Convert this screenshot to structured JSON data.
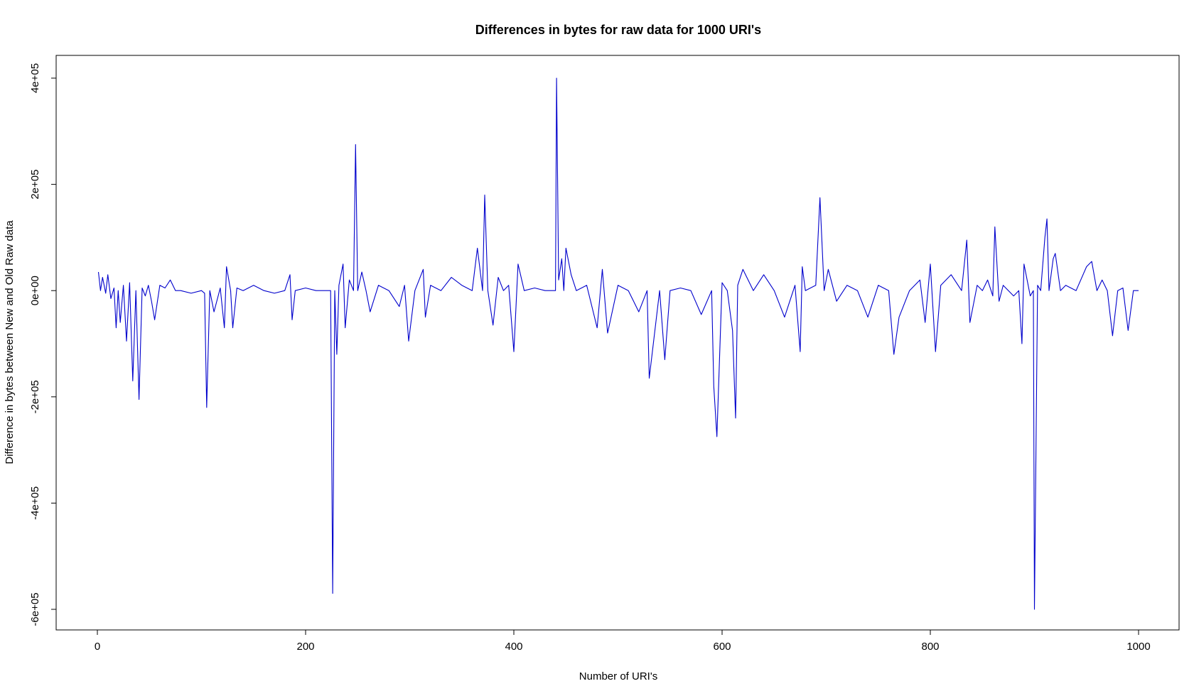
{
  "chart_data": {
    "type": "line",
    "title": "Differences in bytes for raw data for 1000 URI's",
    "xlabel": "Number of URI's",
    "ylabel": "Difference in bytes between New and Old Raw data",
    "xlim": [
      0,
      1000
    ],
    "ylim": [
      -600000,
      400000
    ],
    "xticks": [
      0,
      200,
      400,
      600,
      800,
      1000
    ],
    "xtick_labels": [
      "0",
      "200",
      "400",
      "600",
      "800",
      "1000"
    ],
    "yticks": [
      -600000,
      -400000,
      -200000,
      0,
      200000,
      400000
    ],
    "ytick_labels": [
      "-6e+05",
      "-4e+05",
      "-2e+05",
      "0e+00",
      "2e+05",
      "4e+05"
    ],
    "grid": false,
    "line_color": "#0000cc",
    "series": [
      {
        "x": [
          1,
          3,
          5,
          8,
          10,
          13,
          16,
          18,
          20,
          22,
          25,
          28,
          31,
          34,
          37,
          40,
          43,
          46,
          49,
          52,
          55,
          60,
          65,
          70,
          75,
          80,
          90,
          100,
          103,
          105,
          108,
          112,
          118,
          122,
          124,
          128,
          130,
          134,
          140,
          150,
          160,
          170,
          180,
          185,
          187,
          190,
          200,
          210,
          220,
          224,
          226,
          228,
          230,
          232,
          236,
          238,
          242,
          246,
          248,
          250,
          254,
          258,
          262,
          270,
          280,
          290,
          295,
          299,
          305,
          313,
          315,
          320,
          330,
          340,
          350,
          360,
          365,
          370,
          372,
          375,
          380,
          385,
          390,
          395,
          400,
          404,
          410,
          420,
          430,
          440,
          441,
          443,
          446,
          448,
          450,
          455,
          460,
          470,
          480,
          485,
          490,
          500,
          510,
          520,
          528,
          530,
          540,
          545,
          550,
          560,
          570,
          580,
          590,
          592,
          595,
          600,
          605,
          610,
          613,
          615,
          620,
          630,
          640,
          650,
          660,
          670,
          675,
          677,
          680,
          690,
          694,
          698,
          702,
          710,
          720,
          730,
          740,
          750,
          760,
          765,
          770,
          780,
          790,
          795,
          800,
          805,
          810,
          820,
          830,
          835,
          838,
          845,
          850,
          855,
          860,
          862,
          866,
          870,
          880,
          885,
          888,
          890,
          896,
          899,
          900,
          903,
          906,
          910,
          912,
          914,
          918,
          920,
          925,
          930,
          940,
          950,
          955,
          960,
          965,
          970,
          975,
          980,
          985,
          990,
          995,
          1000
        ],
        "values": [
          35000,
          0,
          25000,
          -5000,
          30000,
          -15000,
          5000,
          -70000,
          0,
          -60000,
          10000,
          -95000,
          15000,
          -170000,
          0,
          -205000,
          5000,
          -10000,
          10000,
          -20000,
          -55000,
          10000,
          5000,
          20000,
          0,
          0,
          -5000,
          0,
          -5000,
          -220000,
          0,
          -40000,
          5000,
          -70000,
          45000,
          0,
          -70000,
          5000,
          0,
          10000,
          0,
          -5000,
          0,
          30000,
          -55000,
          0,
          5000,
          0,
          0,
          0,
          -570000,
          0,
          -120000,
          10000,
          50000,
          -70000,
          20000,
          0,
          275000,
          0,
          35000,
          0,
          -40000,
          10000,
          0,
          -30000,
          10000,
          -95000,
          0,
          40000,
          -50000,
          10000,
          0,
          25000,
          10000,
          0,
          80000,
          0,
          180000,
          0,
          -65000,
          25000,
          0,
          10000,
          -115000,
          50000,
          0,
          5000,
          0,
          0,
          400000,
          20000,
          60000,
          0,
          80000,
          30000,
          0,
          10000,
          -70000,
          40000,
          -80000,
          10000,
          0,
          -40000,
          0,
          -165000,
          0,
          -130000,
          0,
          5000,
          0,
          -45000,
          0,
          -180000,
          -275000,
          15000,
          0,
          -75000,
          -240000,
          10000,
          40000,
          0,
          30000,
          0,
          -50000,
          10000,
          -115000,
          45000,
          0,
          10000,
          175000,
          0,
          40000,
          -20000,
          10000,
          0,
          -50000,
          10000,
          0,
          -120000,
          -50000,
          0,
          20000,
          -60000,
          50000,
          -115000,
          10000,
          30000,
          0,
          95000,
          -60000,
          10000,
          0,
          20000,
          -10000,
          120000,
          -20000,
          10000,
          -10000,
          0,
          -100000,
          50000,
          -10000,
          0,
          -600000,
          10000,
          0,
          100000,
          135000,
          0,
          60000,
          70000,
          0,
          10000,
          0,
          45000,
          55000,
          0,
          20000,
          0,
          -85000,
          0,
          5000,
          -75000,
          0,
          0
        ]
      }
    ]
  }
}
